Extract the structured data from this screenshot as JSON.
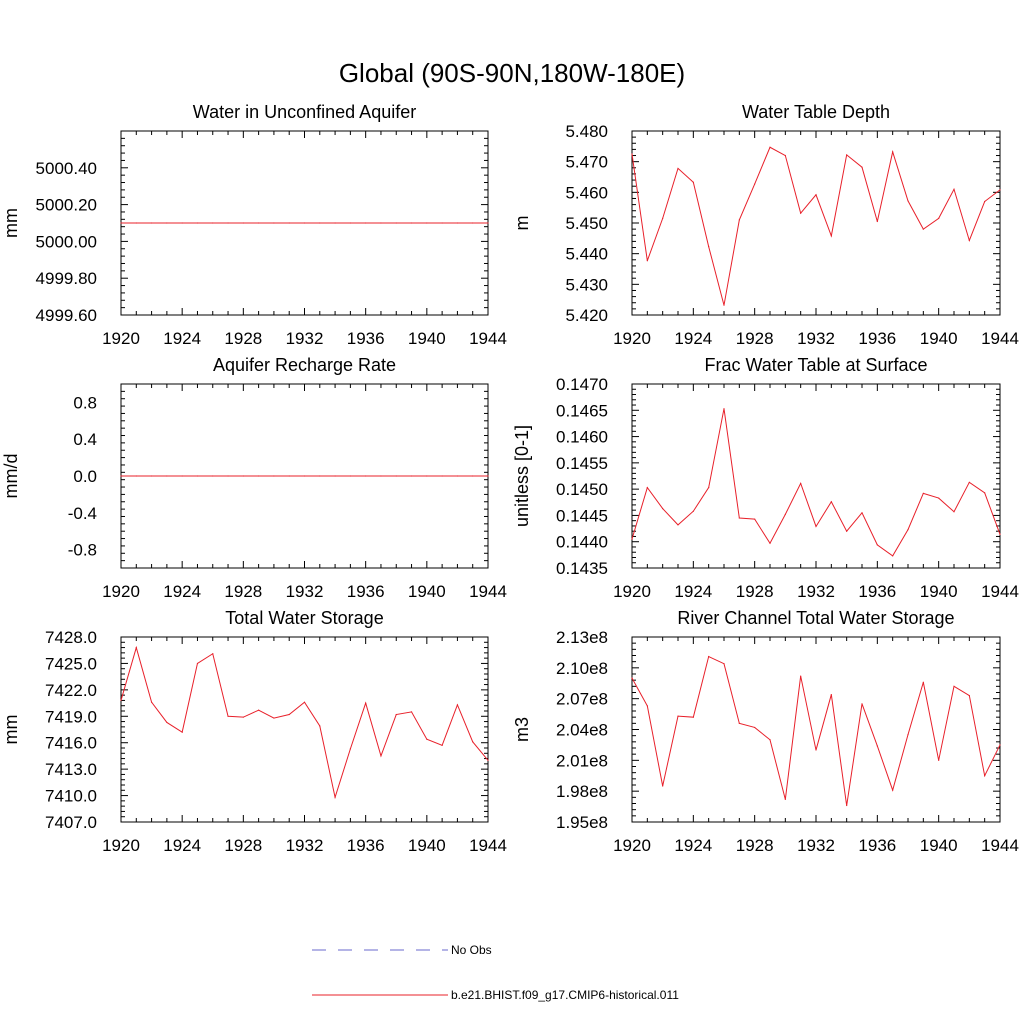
{
  "figure_title": "Global (90S-90N,180W-180E)",
  "legend": [
    {
      "label": "No Obs",
      "color": "#6a6acc",
      "style": "dashed"
    },
    {
      "label": "b.e21.BHIST.f09_g17.CMIP6-historical.011",
      "color": "#e8202a",
      "style": "solid"
    }
  ],
  "chart_data": [
    {
      "type": "line",
      "title": "Water in Unconfined Aquifer",
      "xlabel": "",
      "ylabel": "mm",
      "xlim": [
        1920,
        1944
      ],
      "ylim": [
        4999.6,
        5000.6
      ],
      "xticks": [
        "1920",
        "1924",
        "1928",
        "1932",
        "1936",
        "1940",
        "1944"
      ],
      "xtick_values": [
        1920,
        1924,
        1928,
        1932,
        1936,
        1940,
        1944
      ],
      "yticks": [
        "4999.60",
        "4999.80",
        "5000.00",
        "5000.20",
        "5000.40"
      ],
      "ytick_values": [
        4999.6,
        4999.8,
        5000.0,
        5000.2,
        5000.4
      ],
      "x": [
        1920,
        1921,
        1922,
        1923,
        1924,
        1925,
        1926,
        1927,
        1928,
        1929,
        1930,
        1931,
        1932,
        1933,
        1934,
        1935,
        1936,
        1937,
        1938,
        1939,
        1940,
        1941,
        1942,
        1943,
        1944
      ],
      "series": [
        {
          "color": "#e8202a",
          "values": [
            5000.1,
            5000.1,
            5000.1,
            5000.1,
            5000.1,
            5000.1,
            5000.1,
            5000.1,
            5000.1,
            5000.1,
            5000.1,
            5000.1,
            5000.1,
            5000.1,
            5000.1,
            5000.1,
            5000.1,
            5000.1,
            5000.1,
            5000.1,
            5000.1,
            5000.1,
            5000.1,
            5000.1,
            5000.1
          ]
        }
      ]
    },
    {
      "type": "line",
      "title": "Water Table Depth",
      "xlabel": "",
      "ylabel": "m",
      "xlim": [
        1920,
        1944
      ],
      "ylim": [
        5.42,
        5.48
      ],
      "xticks": [
        "1920",
        "1924",
        "1928",
        "1932",
        "1936",
        "1940",
        "1944"
      ],
      "xtick_values": [
        1920,
        1924,
        1928,
        1932,
        1936,
        1940,
        1944
      ],
      "yticks": [
        "5.420",
        "5.430",
        "5.440",
        "5.450",
        "5.460",
        "5.470",
        "5.480"
      ],
      "ytick_values": [
        5.42,
        5.43,
        5.44,
        5.45,
        5.46,
        5.47,
        5.48
      ],
      "x": [
        1920,
        1921,
        1922,
        1923,
        1924,
        1925,
        1926,
        1927,
        1928,
        1929,
        1930,
        1931,
        1932,
        1933,
        1934,
        1935,
        1936,
        1937,
        1938,
        1939,
        1940,
        1941,
        1942,
        1943,
        1944
      ],
      "series": [
        {
          "color": "#e8202a",
          "values": [
            5.4725,
            5.4377,
            5.4515,
            5.4678,
            5.4633,
            5.4423,
            5.4232,
            5.451,
            5.4627,
            5.4747,
            5.472,
            5.4532,
            5.4592,
            5.4458,
            5.4722,
            5.4682,
            5.4505,
            5.4732,
            5.4572,
            5.448,
            5.4515,
            5.461,
            5.4443,
            5.457,
            5.4608
          ]
        }
      ]
    },
    {
      "type": "line",
      "title": "Aquifer Recharge Rate",
      "xlabel": "",
      "ylabel": "mm/d",
      "xlim": [
        1920,
        1944
      ],
      "ylim": [
        -1.0,
        1.0
      ],
      "xticks": [
        "1920",
        "1924",
        "1928",
        "1932",
        "1936",
        "1940",
        "1944"
      ],
      "xtick_values": [
        1920,
        1924,
        1928,
        1932,
        1936,
        1940,
        1944
      ],
      "yticks": [
        "-0.8",
        "-0.4",
        "0.0",
        "0.4",
        "0.8"
      ],
      "ytick_values": [
        -0.8,
        -0.4,
        0.0,
        0.4,
        0.8
      ],
      "x": [
        1920,
        1921,
        1922,
        1923,
        1924,
        1925,
        1926,
        1927,
        1928,
        1929,
        1930,
        1931,
        1932,
        1933,
        1934,
        1935,
        1936,
        1937,
        1938,
        1939,
        1940,
        1941,
        1942,
        1943,
        1944
      ],
      "series": [
        {
          "color": "#e8202a",
          "values": [
            0,
            0,
            0,
            0,
            0,
            0,
            0,
            0,
            0,
            0,
            0,
            0,
            0,
            0,
            0,
            0,
            0,
            0,
            0,
            0,
            0,
            0,
            0,
            0,
            0
          ]
        }
      ]
    },
    {
      "type": "line",
      "title": "Frac Water Table at Surface",
      "xlabel": "",
      "ylabel": "unitless [0-1]",
      "xlim": [
        1920,
        1944
      ],
      "ylim": [
        0.1435,
        0.147
      ],
      "xticks": [
        "1920",
        "1924",
        "1928",
        "1932",
        "1936",
        "1940",
        "1944"
      ],
      "xtick_values": [
        1920,
        1924,
        1928,
        1932,
        1936,
        1940,
        1944
      ],
      "yticks": [
        "0.1435",
        "0.1440",
        "0.1445",
        "0.1450",
        "0.1455",
        "0.1460",
        "0.1465",
        "0.1470"
      ],
      "ytick_values": [
        0.1435,
        0.144,
        0.1445,
        0.145,
        0.1455,
        0.146,
        0.1465,
        0.147
      ],
      "x": [
        1920,
        1921,
        1922,
        1923,
        1924,
        1925,
        1926,
        1927,
        1928,
        1929,
        1930,
        1931,
        1932,
        1933,
        1934,
        1935,
        1936,
        1937,
        1938,
        1939,
        1940,
        1941,
        1942,
        1943,
        1944
      ],
      "series": [
        {
          "color": "#e8202a",
          "values": [
            0.14405,
            0.14503,
            0.14463,
            0.14432,
            0.14458,
            0.14503,
            0.14653,
            0.14445,
            0.14443,
            0.14397,
            0.14452,
            0.14511,
            0.14429,
            0.14476,
            0.1442,
            0.14455,
            0.14394,
            0.14373,
            0.14423,
            0.14492,
            0.14483,
            0.14457,
            0.14513,
            0.14493,
            0.14414
          ]
        }
      ]
    },
    {
      "type": "line",
      "title": "Total Water Storage",
      "xlabel": "",
      "ylabel": "mm",
      "xlim": [
        1920,
        1944
      ],
      "ylim": [
        7407.0,
        7428.0
      ],
      "xticks": [
        "1920",
        "1924",
        "1928",
        "1932",
        "1936",
        "1940",
        "1944"
      ],
      "xtick_values": [
        1920,
        1924,
        1928,
        1932,
        1936,
        1940,
        1944
      ],
      "yticks": [
        "7407.0",
        "7410.0",
        "7413.0",
        "7416.0",
        "7419.0",
        "7422.0",
        "7425.0",
        "7428.0"
      ],
      "ytick_values": [
        7407,
        7410,
        7413,
        7416,
        7419,
        7422,
        7425,
        7428
      ],
      "x": [
        1920,
        1921,
        1922,
        1923,
        1924,
        1925,
        1926,
        1927,
        1928,
        1929,
        1930,
        1931,
        1932,
        1933,
        1934,
        1935,
        1936,
        1937,
        1938,
        1939,
        1940,
        1941,
        1942,
        1943,
        1944
      ],
      "series": [
        {
          "color": "#e8202a",
          "values": [
            7420.8,
            7426.8,
            7420.6,
            7418.3,
            7417.2,
            7425.0,
            7426.1,
            7419.0,
            7418.9,
            7419.7,
            7418.8,
            7419.2,
            7420.6,
            7417.9,
            7409.8,
            7415.3,
            7420.5,
            7414.5,
            7419.2,
            7419.5,
            7416.4,
            7415.7,
            7420.3,
            7416.1,
            7414.0
          ]
        }
      ]
    },
    {
      "type": "line",
      "title": "River Channel Total Water Storage",
      "xlabel": "",
      "ylabel": "m3",
      "xlim": [
        1920,
        1944
      ],
      "ylim": [
        195000000.0,
        213000000.0
      ],
      "xticks": [
        "1920",
        "1924",
        "1928",
        "1932",
        "1936",
        "1940",
        "1944"
      ],
      "xtick_values": [
        1920,
        1924,
        1928,
        1932,
        1936,
        1940,
        1944
      ],
      "yticks": [
        "1.95e8",
        "1.98e8",
        "2.01e8",
        "2.04e8",
        "2.07e8",
        "2.10e8",
        "2.13e8"
      ],
      "ytick_values": [
        195000000.0,
        198000000.0,
        201000000.0,
        204000000.0,
        207000000.0,
        210000000.0,
        213000000.0
      ],
      "x": [
        1920,
        1921,
        1922,
        1923,
        1924,
        1925,
        1926,
        1927,
        1928,
        1929,
        1930,
        1931,
        1932,
        1933,
        1934,
        1935,
        1936,
        1937,
        1938,
        1939,
        1940,
        1941,
        1942,
        1943,
        1944
      ],
      "series": [
        {
          "color": "#e8202a",
          "values": [
            209000000.0,
            206300000.0,
            198500000.0,
            205300000.0,
            205200000.0,
            211100000.0,
            210400000.0,
            204600000.0,
            204200000.0,
            203000000.0,
            197200000.0,
            209200000.0,
            202000000.0,
            207400000.0,
            196600000.0,
            206500000.0,
            202400000.0,
            198100000.0,
            203500000.0,
            208600000.0,
            201000000.0,
            208200000.0,
            207300000.0,
            199500000.0,
            202500000.0
          ]
        }
      ]
    }
  ]
}
